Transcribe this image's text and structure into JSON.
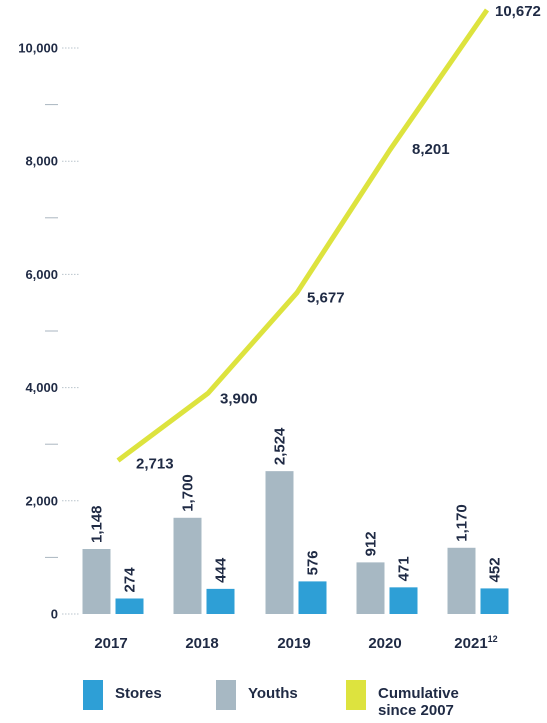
{
  "chart_data": {
    "type": "bar",
    "categories": [
      "2017",
      "2018",
      "2019",
      "2020",
      "2021"
    ],
    "category_superscripts": [
      "",
      "",
      "",
      "",
      "12"
    ],
    "ylim": [
      0,
      11000
    ],
    "yticks": [
      0,
      1000,
      2000,
      3000,
      4000,
      5000,
      6000,
      7000,
      8000,
      9000,
      10000
    ],
    "ytick_labels": [
      "0",
      "",
      "2,000",
      "",
      "4,000",
      "",
      "6,000",
      "",
      "8,000",
      "",
      "10,000"
    ],
    "series": [
      {
        "name": "Youths",
        "type": "bar",
        "color": "#a7b8c3",
        "values": [
          1148,
          1700,
          2524,
          912,
          1170
        ],
        "labels": [
          "1,148",
          "1,700",
          "2,524",
          "912",
          "1,170"
        ]
      },
      {
        "name": "Stores",
        "type": "bar",
        "color": "#2e9fd6",
        "values": [
          274,
          444,
          576,
          471,
          452
        ],
        "labels": [
          "274",
          "444",
          "576",
          "471",
          "452"
        ]
      },
      {
        "name": "Cumulative since 2007",
        "type": "line",
        "color": "#dde33e",
        "values": [
          2713,
          3900,
          5677,
          8201,
          10672
        ],
        "labels": [
          "2,713",
          "3,900",
          "5,677",
          "8,201",
          "10,672"
        ]
      }
    ],
    "legend": {
      "placement": "bottom",
      "items": [
        {
          "label": "Stores",
          "color": "#2e9fd6"
        },
        {
          "label": "Youths",
          "color": "#a7b8c3"
        },
        {
          "label": "Cumulative since 2007",
          "color": "#dde33e"
        }
      ]
    }
  }
}
